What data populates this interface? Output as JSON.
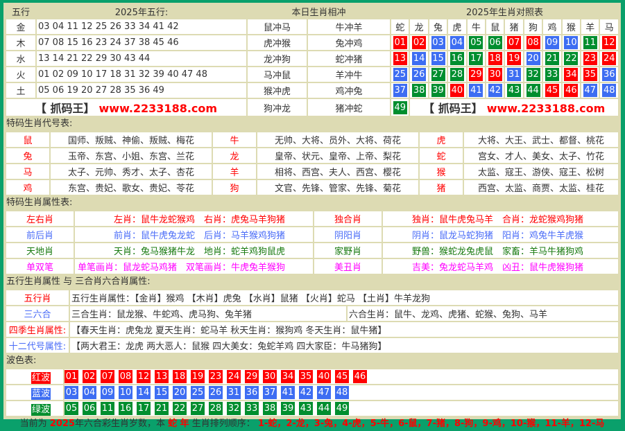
{
  "colors": {
    "red": "#ff0000",
    "blue": "#3d6df2",
    "green": "#008e2e",
    "border": "#0aa06b",
    "panel": "#dddbb3"
  },
  "wuxing": {
    "header": {
      "col1": "五行",
      "col2": "2025年五行:",
      "col3": "本日生肖相冲",
      "col4": "2025年生肖对照表"
    },
    "rows": [
      {
        "el": "金",
        "nums": "03 04 11 12 25 26 33 34 41 42",
        "c1": "鼠冲马",
        "c2": "牛冲羊"
      },
      {
        "el": "木",
        "nums": "07 08 15 16 23 24 37 38 45 46",
        "c1": "虎冲猴",
        "c2": "兔冲鸡"
      },
      {
        "el": "水",
        "nums": "13 14 21 22 29 30 43 44",
        "c1": "龙冲狗",
        "c2": "蛇冲猪"
      },
      {
        "el": "火",
        "nums": "01 02 09 10 17 18 31 32 39 40 47 48",
        "c1": "马冲鼠",
        "c2": "羊冲牛"
      },
      {
        "el": "土",
        "nums": "05 06 19 20 27 28 35 36 49",
        "c1": "猴冲虎",
        "c2": "鸡冲兔"
      }
    ],
    "last": {
      "c1": "狗冲龙",
      "c2": "猪冲蛇"
    },
    "logo_name": "【 抓码王】",
    "logo_url": "www.2233188.com"
  },
  "zodiac_table": {
    "animals": [
      "蛇",
      "龙",
      "兔",
      "虎",
      "牛",
      "鼠",
      "猪",
      "狗",
      "鸡",
      "猴",
      "羊",
      "马"
    ],
    "rows": [
      [
        "01",
        "02",
        "03",
        "04",
        "05",
        "06",
        "07",
        "08",
        "09",
        "10",
        "11",
        "12"
      ],
      [
        "13",
        "14",
        "15",
        "16",
        "17",
        "18",
        "19",
        "20",
        "21",
        "22",
        "23",
        "24"
      ],
      [
        "25",
        "26",
        "27",
        "28",
        "29",
        "30",
        "31",
        "32",
        "33",
        "34",
        "35",
        "36"
      ],
      [
        "37",
        "38",
        "39",
        "40",
        "41",
        "42",
        "43",
        "44",
        "45",
        "46",
        "47",
        "48"
      ],
      [
        "49"
      ]
    ]
  },
  "codes": {
    "title": "特码生肖代号表:",
    "rows": [
      [
        {
          "z": "鼠",
          "n": "国师、叛贼、神偷、叛贼、梅花"
        },
        {
          "z": "牛",
          "n": "无帅、大将、员外、大将、荷花"
        },
        {
          "z": "虎",
          "n": "大将、大王、武士、都督、桃花"
        }
      ],
      [
        {
          "z": "兔",
          "n": "玉帝、东宫、小姐、东宫、兰花"
        },
        {
          "z": "龙",
          "n": "皇帝、状元、皇帝、上帝、梨花"
        },
        {
          "z": "蛇",
          "n": "宫女、才人、美女、太子、竹花"
        }
      ],
      [
        {
          "z": "马",
          "n": "太子、元帅、秀才、太子、杏花"
        },
        {
          "z": "羊",
          "n": "相将、西宫、夫人、西宫、樱花"
        },
        {
          "z": "猴",
          "n": "太监、寇王、游侠、寇王、松树"
        }
      ],
      [
        {
          "z": "鸡",
          "n": "东宫、贵妃、歌女、贵妃、苓花"
        },
        {
          "z": "狗",
          "n": "文官、先锋、管家、先锋、菊花"
        },
        {
          "z": "猪",
          "n": "西宫、太监、商贾、太监、桂花"
        }
      ]
    ]
  },
  "attrs": {
    "title": "特码生肖属性表:",
    "rows": [
      {
        "color": "red",
        "l1": "左右肖",
        "a1": "左肖：鼠牛龙蛇猴鸡",
        "b1": "右肖：虎兔马羊狗猪",
        "l2": "独合肖",
        "a2": "独肖：鼠牛虎兔马羊",
        "b2": "合肖：龙蛇猴鸡狗猪"
      },
      {
        "color": "blue",
        "l1": "前后肖",
        "a1": "前肖：鼠牛虎兔龙蛇",
        "b1": "后肖：马羊猴鸡狗猪",
        "l2": "阴阳肖",
        "a2": "阴肖：鼠龙马蛇狗猪",
        "b2": "阳肖：鸡兔牛羊虎猴"
      },
      {
        "color": "green",
        "l1": "天地肖",
        "a1": "天肖：兔马猴猪牛龙",
        "b1": "地肖：蛇羊鸡狗鼠虎",
        "l2": "家野肖",
        "a2": "野兽：猴蛇龙兔虎鼠",
        "b2": "家畜：羊马牛猪狗鸡"
      },
      {
        "color": "mag",
        "l1": "单双笔",
        "a1": "单笔画肖：鼠龙蛇马鸡猪",
        "b1": "双笔画肖：牛虎兔羊猴狗",
        "l2": "美丑肖",
        "a2": "吉美：兔龙蛇马羊鸡",
        "b2": "凶丑：鼠牛虎猴狗猪"
      }
    ]
  },
  "wuxing_attrs": {
    "title": "五行生肖属性 与 三合肖六合肖属性:",
    "wx_label": "五行肖",
    "wx_text": "五行生肖属性：【金肖】猴鸡 【木肖】虎兔 【水肖】鼠猪 【火肖】蛇马 【土肖】牛羊龙狗",
    "sh_label": "三六合",
    "sanhe": "三合生肖：鼠龙猴、牛蛇鸡、虎马狗、兔羊猪",
    "liuhe": "六合生肖：鼠牛、龙鸡、虎猪、蛇猴、兔狗、马羊",
    "season_label": "四季生肖属性:",
    "season_text": "【春天生肖：虎兔龙 夏天生肖：蛇马羊 秋天生肖：猴狗鸡 冬天生肖：鼠牛猪】",
    "code_label": "十二代号属性:",
    "code_text": "【两大君王：龙虎 两大恶人：鼠猴 四大美女：兔蛇羊鸡 四大家臣：牛马猪狗】"
  },
  "waves": {
    "title": "波色表:",
    "rows": [
      {
        "label": "红波",
        "cls": "r",
        "nums": [
          "01",
          "02",
          "07",
          "08",
          "12",
          "13",
          "18",
          "19",
          "23",
          "24",
          "29",
          "30",
          "34",
          "35",
          "40",
          "45",
          "46"
        ]
      },
      {
        "label": "蓝波",
        "cls": "b",
        "nums": [
          "03",
          "04",
          "09",
          "10",
          "14",
          "15",
          "20",
          "25",
          "26",
          "31",
          "36",
          "37",
          "41",
          "42",
          "47",
          "48"
        ]
      },
      {
        "label": "绿波",
        "cls": "g",
        "nums": [
          "05",
          "06",
          "11",
          "16",
          "17",
          "21",
          "22",
          "27",
          "28",
          "32",
          "33",
          "38",
          "39",
          "43",
          "44",
          "49"
        ]
      }
    ]
  },
  "footer": {
    "p1": "当前为 ",
    "year": "2025",
    "p2": "年六合彩生肖岁数，本 ",
    "animal": "蛇 年",
    "p3": " 生肖排列顺序： ",
    "order": "1-蛇，2-龙，3-兔，4-虎，5-牛，6-鼠，7-猪，8-狗，9-鸡，10-猴，11-羊，12-马"
  }
}
